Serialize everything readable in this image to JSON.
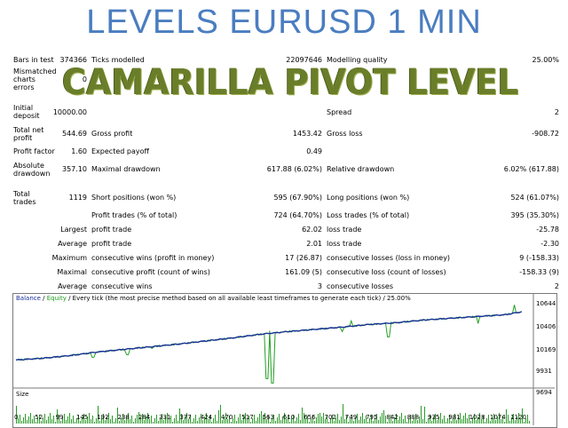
{
  "headline": "LEVELS EURUSD 1 MIN",
  "overlay": "CAMARILLA PIVOT LEVEL",
  "report": {
    "bars_in_test_label": "Bars in test",
    "bars_in_test": "374366",
    "ticks_modelled_label": "Ticks modelled",
    "ticks_modelled": "22097646",
    "modelling_quality_label": "Modelling quality",
    "modelling_quality": "25.00%",
    "mismatched_label_1": "Mismatched",
    "mismatched_label_2": "charts",
    "mismatched_label_3": "errors",
    "mismatched": "0",
    "initial_deposit_label_1": "Initial",
    "initial_deposit_label_2": "deposit",
    "initial_deposit": "10000.00",
    "spread_label": "Spread",
    "spread": "2",
    "total_net_profit_label_1": "Total net",
    "total_net_profit_label_2": "profit",
    "total_net_profit": "544.69",
    "gross_profit_label": "Gross profit",
    "gross_profit": "1453.42",
    "gross_loss_label": "Gross loss",
    "gross_loss": "-908.72",
    "profit_factor_label": "Profit factor",
    "profit_factor": "1.60",
    "expected_payoff_label": "Expected payoff",
    "expected_payoff": "0.49",
    "absolute_drawdown_label_1": "Absolute",
    "absolute_drawdown_label_2": "drawdown",
    "absolute_drawdown": "357.10",
    "maximal_drawdown_label": "Maximal drawdown",
    "maximal_drawdown": "617.88 (6.02%)",
    "relative_drawdown_label": "Relative drawdown",
    "relative_drawdown": "6.02% (617.88)",
    "total_trades_label_1": "Total",
    "total_trades_label_2": "trades",
    "total_trades": "1119",
    "short_positions_label": "Short positions (won %)",
    "short_positions": "595 (67.90%)",
    "long_positions_label": "Long positions (won %)",
    "long_positions": "524 (61.07%)",
    "profit_trades_label": "Profit trades (% of total)",
    "profit_trades": "724 (64.70%)",
    "loss_trades_label": "Loss trades (% of total)",
    "loss_trades": "395 (35.30%)",
    "largest_label": "Largest",
    "largest_profit_label": "profit trade",
    "largest_profit": "62.02",
    "largest_loss_label": "loss trade",
    "largest_loss": "-25.78",
    "average_label": "Average",
    "average_profit_label": "profit trade",
    "average_profit": "2.01",
    "average_loss_label": "loss trade",
    "average_loss": "-2.30",
    "maximum_label": "Maximum",
    "max_cons_wins_label": "consecutive wins (profit in money)",
    "max_cons_wins": "17 (26.87)",
    "max_cons_losses_label": "consecutive losses (loss in money)",
    "max_cons_losses": "9 (-158.33)",
    "maximal_label": "Maximal",
    "maximal_cons_profit_label": "consecutive profit (count of wins)",
    "maximal_cons_profit": "161.09 (5)",
    "maximal_cons_loss_label": "consecutive loss (count of losses)",
    "maximal_cons_loss": "-158.33 (9)",
    "average2_label": "Average",
    "avg_cons_wins_label": "consecutive wins",
    "avg_cons_wins": "3",
    "avg_cons_losses_label": "consecutive losses",
    "avg_cons_losses": "2"
  },
  "chart_data": {
    "type": "line",
    "legend_balance": "Balance",
    "legend_sep": " / ",
    "legend_equity": "Equity",
    "legend_rest": " / Every tick (the most precise method based on all available least timeframes to generate each tick) / 25.00%",
    "size_label": "Size",
    "y_ticks": [
      "10644",
      "10406",
      "10169",
      "9931",
      "9694"
    ],
    "x_ticks": [
      "0",
      "52",
      "99",
      "145",
      "192",
      "238",
      "284",
      "331",
      "377",
      "424",
      "470",
      "517",
      "563",
      "610",
      "656",
      "702",
      "749",
      "795",
      "842",
      "888",
      "935",
      "981",
      "1028",
      "1074",
      "1120"
    ],
    "ylim": [
      9694,
      10644
    ],
    "xlim": [
      0,
      1140
    ],
    "balance": [
      [
        0,
        10000
      ],
      [
        60,
        10020
      ],
      [
        120,
        10050
      ],
      [
        180,
        10090
      ],
      [
        240,
        10120
      ],
      [
        300,
        10150
      ],
      [
        360,
        10180
      ],
      [
        420,
        10215
      ],
      [
        480,
        10250
      ],
      [
        540,
        10290
      ],
      [
        600,
        10320
      ],
      [
        660,
        10345
      ],
      [
        720,
        10370
      ],
      [
        780,
        10400
      ],
      [
        840,
        10420
      ],
      [
        900,
        10450
      ],
      [
        960,
        10470
      ],
      [
        1020,
        10490
      ],
      [
        1080,
        10510
      ],
      [
        1119,
        10545
      ]
    ],
    "equity_dips": [
      [
        170,
        10030
      ],
      [
        245,
        10060
      ],
      [
        300,
        10130
      ],
      [
        555,
        9790
      ],
      [
        565,
        9740
      ],
      [
        720,
        10320
      ],
      [
        822,
        10260
      ],
      [
        1020,
        10410
      ],
      [
        1100,
        10360
      ]
    ],
    "equity_spikes": [
      [
        560,
        10330
      ],
      [
        740,
        10440
      ],
      [
        1100,
        10620
      ]
    ]
  }
}
